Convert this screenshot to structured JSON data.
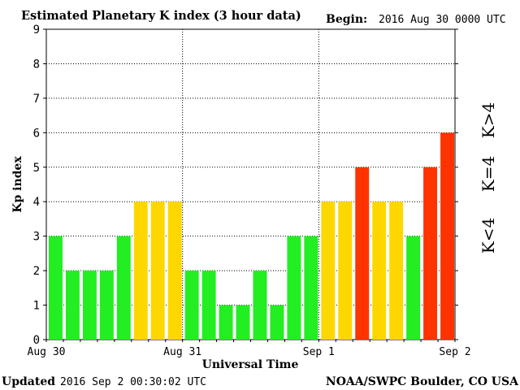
{
  "header": {
    "title": "Estimated Planetary K index (3 hour data)",
    "begin_label": "Begin:",
    "begin_value": "2016 Aug 30 0000 UTC"
  },
  "footer": {
    "updated_label": "Updated",
    "updated_value": "2016 Sep  2 00:30:02 UTC",
    "source": "NOAA/SWPC Boulder, CO USA"
  },
  "legend": {
    "below": "K<4",
    "equal": "K=4",
    "above": "K>4"
  },
  "colors": {
    "below": "#22ee22",
    "equal": "#ffd700",
    "above": "#ff3300"
  },
  "chart_data": {
    "type": "bar",
    "title": "Estimated Planetary K index (3 hour data)",
    "xlabel": "Universal Time",
    "ylabel": "Kp index",
    "ylim": [
      0,
      9
    ],
    "yticks": [
      "0",
      "1",
      "2",
      "3",
      "4",
      "5",
      "6",
      "7",
      "8",
      "9"
    ],
    "day_labels": [
      "Aug 30",
      "Aug 31",
      "Sep 1",
      "Sep 2"
    ],
    "grid": true,
    "values": [
      3,
      2,
      2,
      2,
      3,
      4,
      4,
      4,
      2,
      2,
      1,
      1,
      2,
      1,
      3,
      3,
      4,
      4,
      5,
      4,
      4,
      3,
      5,
      6
    ]
  }
}
